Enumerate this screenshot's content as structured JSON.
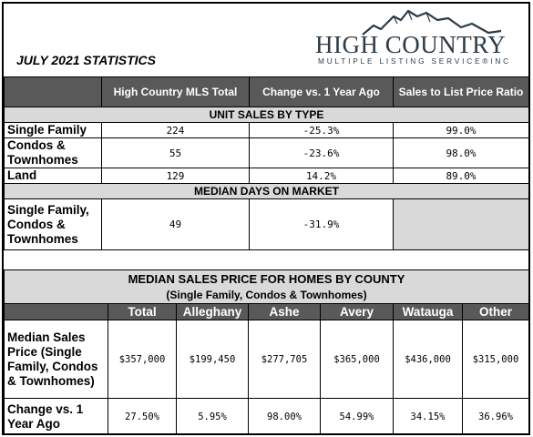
{
  "header": {
    "title": "JULY 2021 STATISTICS",
    "logo_main": "HIGH COUNTRY",
    "logo_sub": "MULTIPLE LISTING SERVICE®INC"
  },
  "unit_table": {
    "columns": [
      "High Country MLS Total",
      "Change vs. 1 Year Ago",
      "Sales to List Price Ratio"
    ],
    "section_unit_sales": "UNIT SALES BY TYPE",
    "rows": [
      {
        "label": "Single Family",
        "total": "224",
        "change": "-25.3%",
        "ratio": "99.0%"
      },
      {
        "label": "Condos & Townhomes",
        "total": "55",
        "change": "-23.6%",
        "ratio": "98.0%"
      },
      {
        "label": "Land",
        "total": "129",
        "change": "14.2%",
        "ratio": "89.0%"
      }
    ],
    "section_days": "MEDIAN DAYS ON MARKET",
    "days_row": {
      "label": "Single Family, Condos & Townhomes",
      "total": "49",
      "change": "-31.9%"
    }
  },
  "county_table": {
    "title": "MEDIAN SALES PRICE FOR HOMES BY COUNTY",
    "subtitle": "(Single Family, Condos & Townhomes)",
    "columns": [
      "Total",
      "Alleghany",
      "Ashe",
      "Avery",
      "Watauga",
      "Other"
    ],
    "price_label": "Median Sales Price (Single Family, Condos & Townhomes)",
    "prices": [
      "$357,000",
      "$199,450",
      "$277,705",
      "$365,000",
      "$436,000",
      "$315,000"
    ],
    "change_label": "Change vs. 1 Year Ago",
    "changes": [
      "27.50%",
      "5.95%",
      "98.00%",
      "54.99%",
      "34.15%",
      "36.96%"
    ]
  }
}
